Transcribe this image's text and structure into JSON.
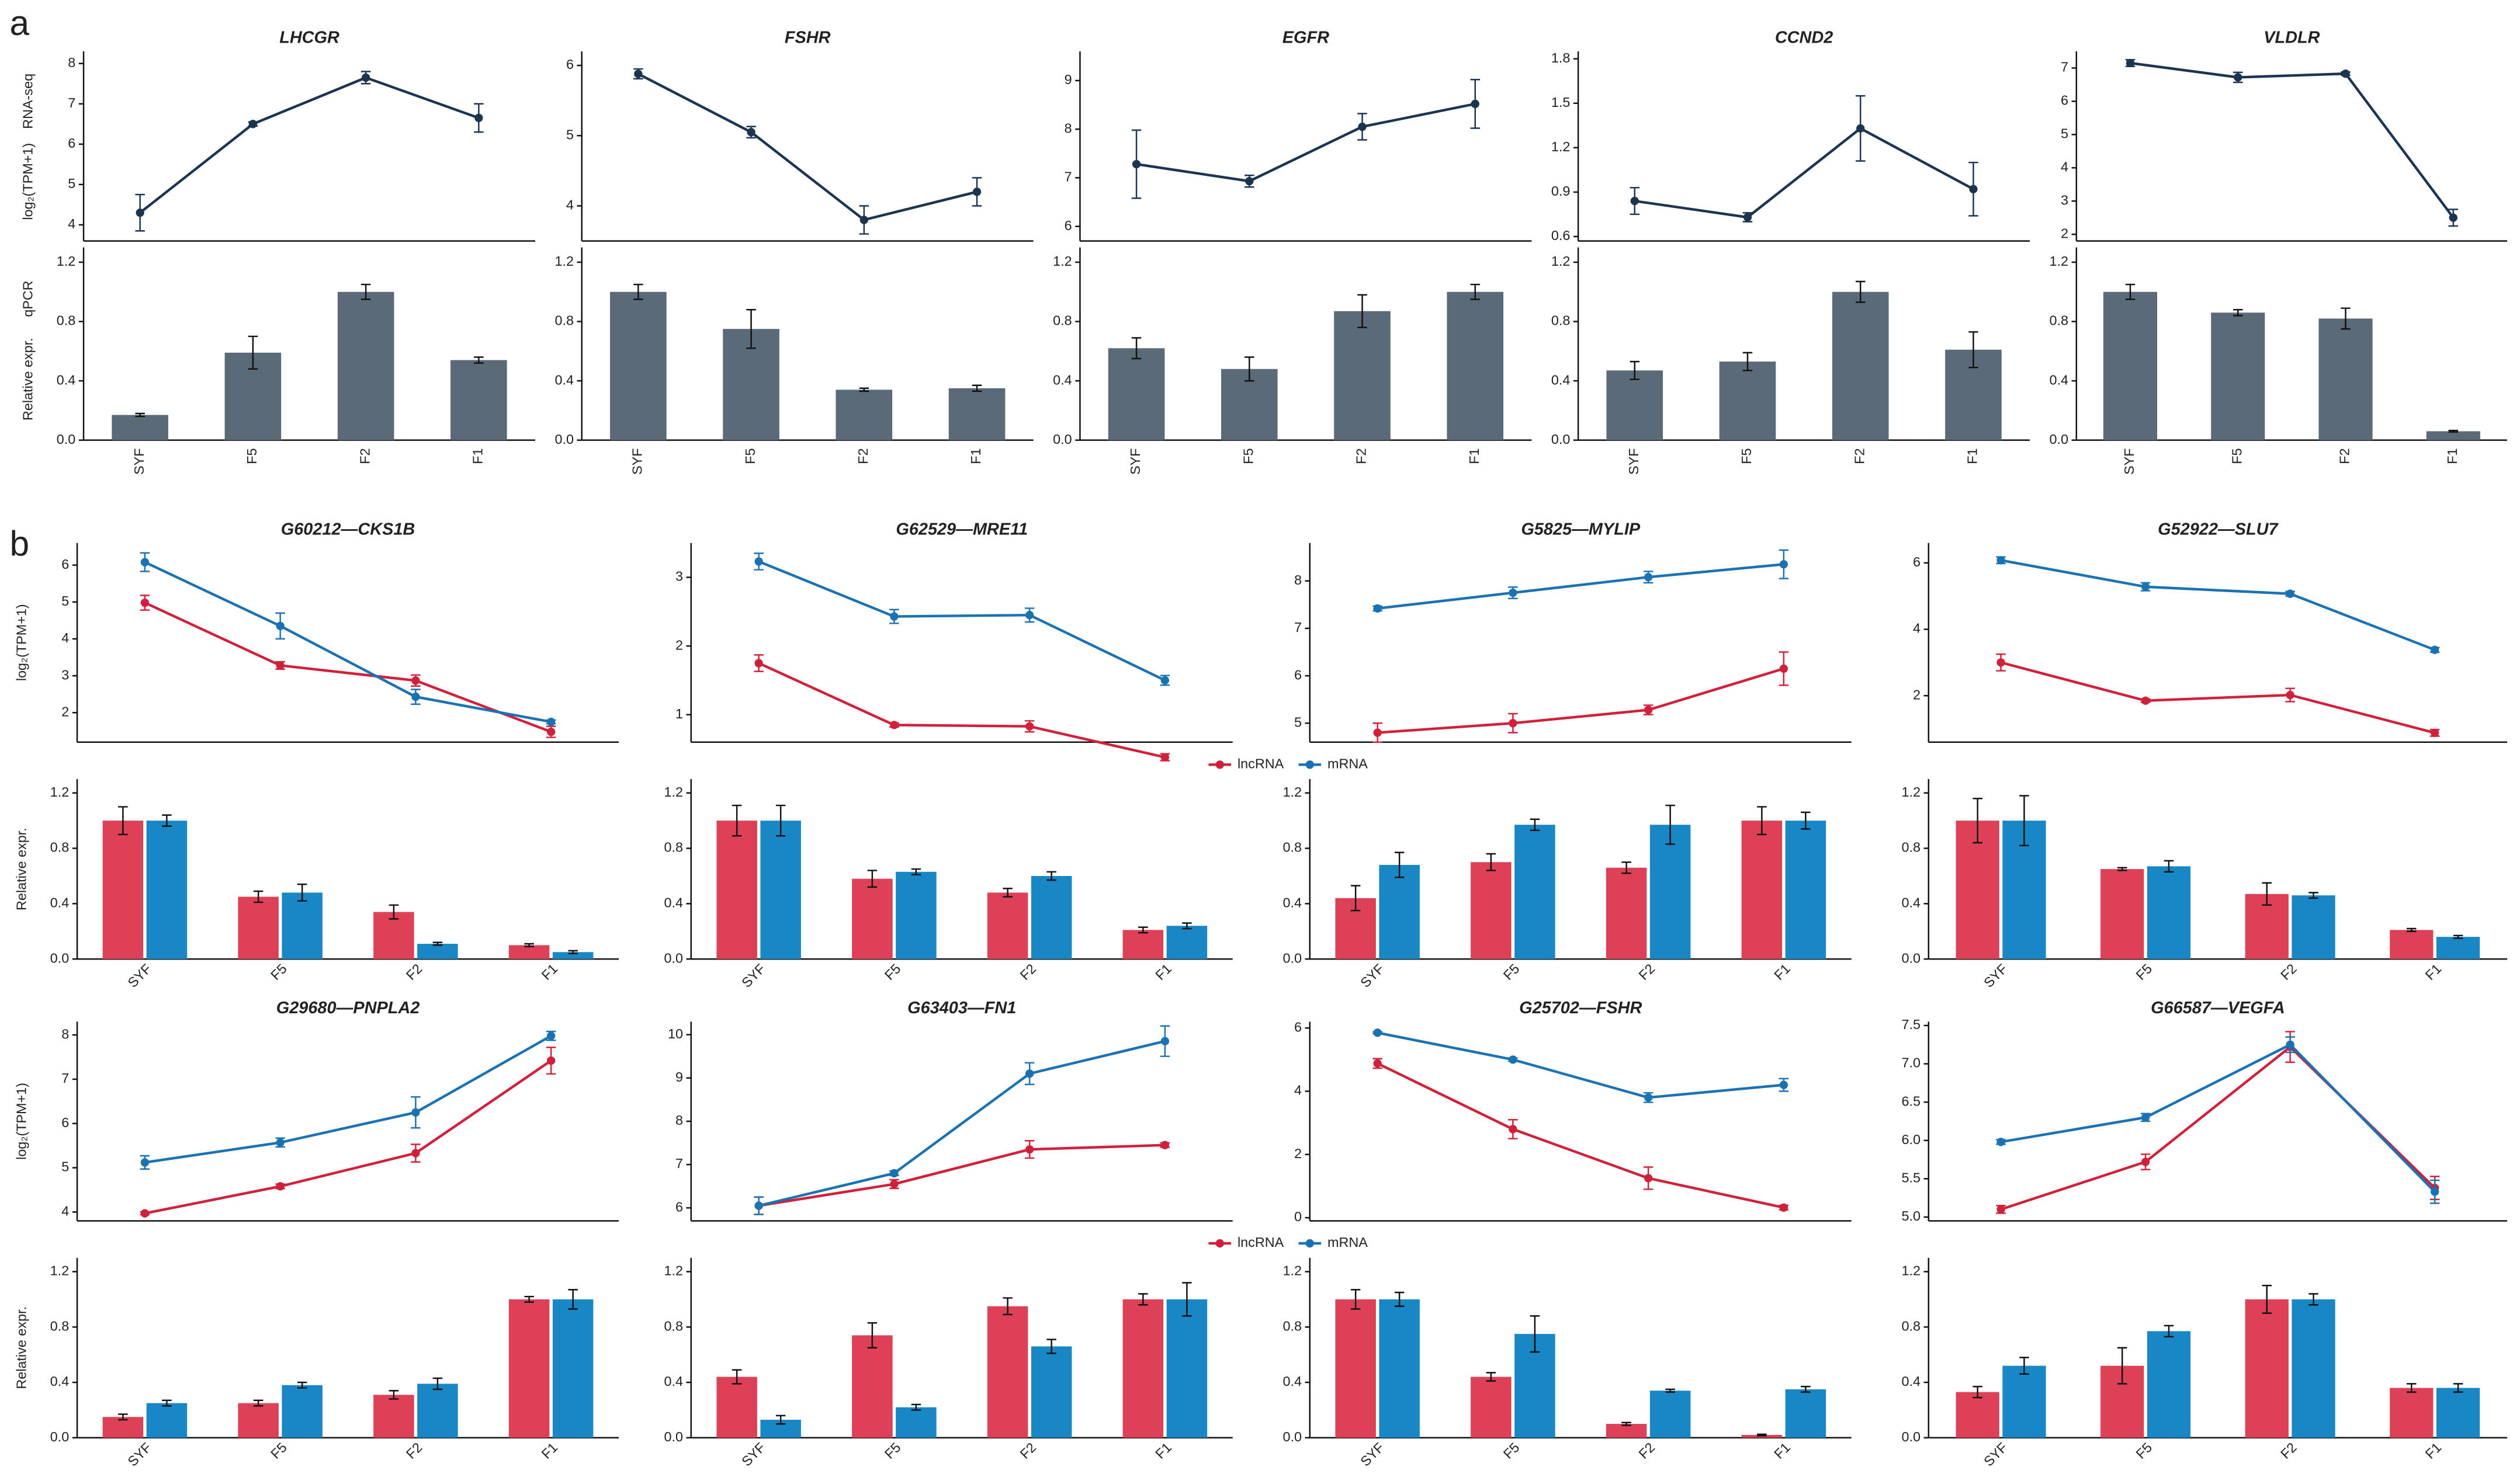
{
  "panel_labels": [
    "a",
    "b"
  ],
  "chart_data": [
    {
      "type": "line",
      "title": "LHCGR",
      "ylabel": "log₂(TPM+1)",
      "ylabel_2": "RNA-seq",
      "categories": [
        "SYF",
        "F5",
        "F2",
        "F1"
      ],
      "color": "#1b3550",
      "values": [
        4.3,
        6.5,
        7.65,
        6.65
      ],
      "errors": [
        0.45,
        0.05,
        0.15,
        0.35
      ],
      "ylim": [
        3.6,
        8.3
      ],
      "yticks": [
        4,
        5,
        6,
        7,
        8
      ]
    },
    {
      "type": "bar",
      "ylabel": "Relative expr.",
      "ylabel_2": "qPCR",
      "categories": [
        "SYF",
        "F5",
        "F2",
        "F1"
      ],
      "color": "#5a6a79",
      "values": [
        0.17,
        0.59,
        1.0,
        0.54
      ],
      "errors": [
        0.01,
        0.11,
        0.05,
        0.02
      ],
      "ylim": [
        0,
        1.3
      ],
      "yticks": [
        {
          "value": 0,
          "label": "0.0"
        },
        0.4,
        0.8,
        1.2
      ]
    },
    {
      "type": "line",
      "title": "FSHR",
      "categories": [
        "SYF",
        "F5",
        "F2",
        "F1"
      ],
      "color": "#1b3550",
      "values": [
        5.88,
        5.05,
        3.8,
        4.2
      ],
      "errors": [
        0.07,
        0.08,
        0.2,
        0.2
      ],
      "ylim": [
        3.5,
        6.2
      ],
      "yticks": [
        4,
        5,
        6
      ]
    },
    {
      "type": "bar",
      "categories": [
        "SYF",
        "F5",
        "F2",
        "F1"
      ],
      "color": "#5a6a79",
      "values": [
        1.0,
        0.75,
        0.34,
        0.35
      ],
      "errors": [
        0.05,
        0.13,
        0.01,
        0.02
      ],
      "ylim": [
        0,
        1.3
      ],
      "yticks": [
        {
          "value": 0,
          "label": "0.0"
        },
        0.4,
        0.8,
        1.2
      ]
    },
    {
      "type": "line",
      "title": "EGFR",
      "categories": [
        "SYF",
        "F5",
        "F2",
        "F1"
      ],
      "color": "#1b3550",
      "values": [
        7.28,
        6.93,
        8.05,
        8.52
      ],
      "errors": [
        0.7,
        0.12,
        0.27,
        0.5
      ],
      "ylim": [
        5.7,
        9.6
      ],
      "yticks": [
        6,
        7,
        8,
        9
      ]
    },
    {
      "type": "bar",
      "categories": [
        "SYF",
        "F5",
        "F2",
        "F1"
      ],
      "color": "#5a6a79",
      "values": [
        0.62,
        0.48,
        0.87,
        1.0
      ],
      "errors": [
        0.07,
        0.08,
        0.11,
        0.05
      ],
      "ylim": [
        0,
        1.3
      ],
      "yticks": [
        {
          "value": 0,
          "label": "0.0"
        },
        0.4,
        0.8,
        1.2
      ]
    },
    {
      "type": "line",
      "title": "CCND2",
      "categories": [
        "SYF",
        "F5",
        "F2",
        "F1"
      ],
      "color": "#1b3550",
      "values": [
        0.84,
        0.73,
        1.33,
        0.92
      ],
      "errors": [
        0.09,
        0.03,
        0.22,
        0.18
      ],
      "ylim": [
        0.57,
        1.85
      ],
      "yticks": [
        0.6,
        0.9,
        1.2,
        1.5,
        1.8
      ]
    },
    {
      "type": "bar",
      "categories": [
        "SYF",
        "F5",
        "F2",
        "F1"
      ],
      "color": "#5a6a79",
      "values": [
        0.47,
        0.53,
        1.0,
        0.61
      ],
      "errors": [
        0.06,
        0.06,
        0.07,
        0.12
      ],
      "ylim": [
        0,
        1.3
      ],
      "yticks": [
        {
          "value": 0,
          "label": "0.0"
        },
        0.4,
        0.8,
        1.2
      ]
    },
    {
      "type": "line",
      "title": "VLDLR",
      "categories": [
        "SYF",
        "F5",
        "F2",
        "F1"
      ],
      "color": "#1b3550",
      "values": [
        7.15,
        6.72,
        6.83,
        2.5
      ],
      "errors": [
        0.1,
        0.15,
        0.05,
        0.25
      ],
      "ylim": [
        1.8,
        7.5
      ],
      "yticks": [
        2,
        3,
        4,
        5,
        6,
        7
      ]
    },
    {
      "type": "bar",
      "categories": [
        "SYF",
        "F5",
        "F2",
        "F1"
      ],
      "color": "#5a6a79",
      "values": [
        1.0,
        0.86,
        0.82,
        0.06
      ],
      "errors": [
        0.05,
        0.02,
        0.07,
        0.005
      ],
      "ylim": [
        0,
        1.3
      ],
      "yticks": [
        {
          "value": 0,
          "label": "0.0"
        },
        0.4,
        0.8,
        1.2
      ]
    },
    {
      "type": "line",
      "title": "G60212—CKS1B",
      "ylabel": "log₂(TPM+1)",
      "categories": [
        "SYF",
        "F5",
        "F2",
        "F1"
      ],
      "series": [
        {
          "name": "lncRNA",
          "color": "#d0203a",
          "values": [
            4.98,
            3.28,
            2.87,
            1.48
          ],
          "errors": [
            0.2,
            0.1,
            0.15,
            0.15
          ]
        },
        {
          "name": "mRNA",
          "color": "#1a72b3",
          "values": [
            6.08,
            4.35,
            2.43,
            1.75
          ],
          "errors": [
            0.25,
            0.35,
            0.2,
            0.05
          ]
        }
      ],
      "ylim": [
        1.2,
        6.6
      ],
      "yticks": [
        2,
        3,
        4,
        5,
        6
      ]
    },
    {
      "type": "bar",
      "ylabel": "Relative expr.",
      "categories": [
        "SYF",
        "F5",
        "F2",
        "F1"
      ],
      "series": [
        {
          "color": "#dc4157",
          "values": [
            1.0,
            0.45,
            0.34,
            0.1
          ],
          "errors": [
            0.1,
            0.04,
            0.05,
            0.01
          ]
        },
        {
          "color": "#1a87c5",
          "values": [
            1.0,
            0.48,
            0.11,
            0.05
          ],
          "errors": [
            0.04,
            0.06,
            0.01,
            0.01
          ]
        }
      ],
      "ylim": [
        0,
        1.3
      ],
      "yticks": [
        {
          "value": 0,
          "label": "0.0"
        },
        0.4,
        0.8,
        1.2
      ]
    },
    {
      "type": "line",
      "title": "G62529—MRE11",
      "categories": [
        "SYF",
        "F5",
        "F2",
        "F1"
      ],
      "series": [
        {
          "name": "lncRNA",
          "color": "#d0203a",
          "values": [
            1.75,
            0.85,
            0.83,
            0.38
          ],
          "errors": [
            0.12,
            0.03,
            0.08,
            0.05
          ]
        },
        {
          "name": "mRNA",
          "color": "#1a72b3",
          "values": [
            3.23,
            2.43,
            2.45,
            1.5
          ],
          "errors": [
            0.12,
            0.1,
            0.1,
            0.07
          ]
        }
      ],
      "ylim": [
        0.6,
        3.5
      ],
      "yticks": [
        1,
        2,
        3
      ]
    },
    {
      "type": "bar",
      "categories": [
        "SYF",
        "F5",
        "F2",
        "F1"
      ],
      "series": [
        {
          "color": "#dc4157",
          "values": [
            1.0,
            0.58,
            0.48,
            0.21
          ],
          "errors": [
            0.11,
            0.06,
            0.03,
            0.02
          ]
        },
        {
          "color": "#1a87c5",
          "values": [
            1.0,
            0.63,
            0.6,
            0.24
          ],
          "errors": [
            0.11,
            0.02,
            0.03,
            0.02
          ]
        }
      ],
      "ylim": [
        0,
        1.3
      ],
      "yticks": [
        {
          "value": 0,
          "label": "0.0"
        },
        0.4,
        0.8,
        1.2
      ]
    },
    {
      "type": "line",
      "title": "G5825—MYLIP",
      "categories": [
        "SYF",
        "F5",
        "F2",
        "F1"
      ],
      "series": [
        {
          "name": "lncRNA",
          "color": "#d0203a",
          "values": [
            4.8,
            5.0,
            5.28,
            6.15
          ],
          "errors": [
            0.2,
            0.2,
            0.1,
            0.35
          ]
        },
        {
          "name": "mRNA",
          "color": "#1a72b3",
          "values": [
            7.42,
            7.75,
            8.08,
            8.35
          ],
          "errors": [
            0.05,
            0.12,
            0.12,
            0.3
          ]
        }
      ],
      "ylim": [
        4.6,
        8.8
      ],
      "yticks": [
        5,
        6,
        7,
        8
      ]
    },
    {
      "type": "bar",
      "categories": [
        "SYF",
        "F5",
        "F2",
        "F1"
      ],
      "series": [
        {
          "color": "#dc4157",
          "values": [
            0.44,
            0.7,
            0.66,
            1.0
          ],
          "errors": [
            0.09,
            0.06,
            0.04,
            0.1
          ]
        },
        {
          "color": "#1a87c5",
          "values": [
            0.68,
            0.97,
            0.97,
            1.0
          ],
          "errors": [
            0.09,
            0.04,
            0.14,
            0.06
          ]
        }
      ],
      "ylim": [
        0,
        1.3
      ],
      "yticks": [
        {
          "value": 0,
          "label": "0.0"
        },
        0.4,
        0.8,
        1.2
      ]
    },
    {
      "type": "line",
      "title": "G52922—SLU7",
      "categories": [
        "SYF",
        "F5",
        "F2",
        "F1"
      ],
      "series": [
        {
          "name": "lncRNA",
          "color": "#d0203a",
          "values": [
            3.0,
            1.85,
            2.02,
            0.88
          ],
          "errors": [
            0.25,
            0.05,
            0.2,
            0.1
          ]
        },
        {
          "name": "mRNA",
          "color": "#1a72b3",
          "values": [
            6.08,
            5.28,
            5.07,
            3.38
          ],
          "errors": [
            0.1,
            0.12,
            0.07,
            0.07
          ]
        }
      ],
      "ylim": [
        0.6,
        6.6
      ],
      "yticks": [
        2,
        4,
        6
      ]
    },
    {
      "type": "bar",
      "categories": [
        "SYF",
        "F5",
        "F2",
        "F1"
      ],
      "series": [
        {
          "color": "#dc4157",
          "values": [
            1.0,
            0.65,
            0.47,
            0.21
          ],
          "errors": [
            0.16,
            0.01,
            0.08,
            0.01
          ]
        },
        {
          "color": "#1a87c5",
          "values": [
            1.0,
            0.67,
            0.46,
            0.16
          ],
          "errors": [
            0.18,
            0.04,
            0.02,
            0.01
          ]
        }
      ],
      "ylim": [
        0,
        1.3
      ],
      "yticks": [
        {
          "value": 0,
          "label": "0.0"
        },
        0.4,
        0.8,
        1.2
      ]
    },
    {
      "type": "line",
      "title": "G29680—PNPLA2",
      "ylabel": "log₂(TPM+1)",
      "categories": [
        "SYF",
        "F5",
        "F2",
        "F1"
      ],
      "series": [
        {
          "name": "lncRNA",
          "color": "#d0203a",
          "values": [
            3.97,
            4.58,
            5.33,
            7.42
          ],
          "errors": [
            0.03,
            0.05,
            0.2,
            0.3
          ]
        },
        {
          "name": "mRNA",
          "color": "#1a72b3",
          "values": [
            5.12,
            5.57,
            6.25,
            7.98
          ],
          "errors": [
            0.15,
            0.1,
            0.35,
            0.1
          ]
        }
      ],
      "ylim": [
        3.8,
        8.3
      ],
      "yticks": [
        4,
        5,
        6,
        7,
        8
      ]
    },
    {
      "type": "bar",
      "ylabel": "Relative expr.",
      "categories": [
        "SYF",
        "F5",
        "F2",
        "F1"
      ],
      "series": [
        {
          "color": "#dc4157",
          "values": [
            0.15,
            0.25,
            0.31,
            1.0
          ],
          "errors": [
            0.02,
            0.02,
            0.03,
            0.02
          ]
        },
        {
          "color": "#1a87c5",
          "values": [
            0.25,
            0.38,
            0.39,
            1.0
          ],
          "errors": [
            0.02,
            0.02,
            0.04,
            0.07
          ]
        }
      ],
      "ylim": [
        0,
        1.3
      ],
      "yticks": [
        {
          "value": 0,
          "label": "0.0"
        },
        0.4,
        0.8,
        1.2
      ]
    },
    {
      "type": "line",
      "title": "G63403—FN1",
      "categories": [
        "SYF",
        "F5",
        "F2",
        "F1"
      ],
      "series": [
        {
          "name": "lncRNA",
          "color": "#d0203a",
          "values": [
            6.05,
            6.55,
            7.35,
            7.45
          ],
          "errors": [
            0.2,
            0.1,
            0.2,
            0.05
          ]
        },
        {
          "name": "mRNA",
          "color": "#1a72b3",
          "values": [
            6.05,
            6.8,
            9.1,
            9.85
          ],
          "errors": [
            0.2,
            0.05,
            0.25,
            0.35
          ]
        }
      ],
      "ylim": [
        5.7,
        10.3
      ],
      "yticks": [
        6,
        7,
        8,
        9,
        10
      ]
    },
    {
      "type": "bar",
      "categories": [
        "SYF",
        "F5",
        "F2",
        "F1"
      ],
      "series": [
        {
          "color": "#dc4157",
          "values": [
            0.44,
            0.74,
            0.95,
            1.0
          ],
          "errors": [
            0.05,
            0.09,
            0.06,
            0.04
          ]
        },
        {
          "color": "#1a87c5",
          "values": [
            0.13,
            0.22,
            0.66,
            1.0
          ],
          "errors": [
            0.03,
            0.02,
            0.05,
            0.12
          ]
        }
      ],
      "ylim": [
        0,
        1.3
      ],
      "yticks": [
        {
          "value": 0,
          "label": "0.0"
        },
        0.4,
        0.8,
        1.2
      ]
    },
    {
      "type": "line",
      "title": "G25702—FSHR",
      "categories": [
        "SYF",
        "F5",
        "F2",
        "F1"
      ],
      "series": [
        {
          "name": "lncRNA",
          "color": "#d0203a",
          "values": [
            4.88,
            2.8,
            1.25,
            0.32
          ],
          "errors": [
            0.15,
            0.3,
            0.35,
            0.07
          ]
        },
        {
          "name": "mRNA",
          "color": "#1a72b3",
          "values": [
            5.85,
            5.0,
            3.8,
            4.2
          ],
          "errors": [
            0.03,
            0.05,
            0.15,
            0.2
          ]
        }
      ],
      "ylim": [
        -0.1,
        6.2
      ],
      "yticks": [
        0,
        2,
        4,
        6
      ]
    },
    {
      "type": "bar",
      "categories": [
        "SYF",
        "F5",
        "F2",
        "F1"
      ],
      "series": [
        {
          "color": "#dc4157",
          "values": [
            1.0,
            0.44,
            0.1,
            0.02
          ],
          "errors": [
            0.07,
            0.03,
            0.01,
            0.005
          ]
        },
        {
          "color": "#1a87c5",
          "values": [
            1.0,
            0.75,
            0.34,
            0.35
          ],
          "errors": [
            0.05,
            0.13,
            0.01,
            0.02
          ]
        }
      ],
      "ylim": [
        0,
        1.3
      ],
      "yticks": [
        {
          "value": 0,
          "label": "0.0"
        },
        0.4,
        0.8,
        1.2
      ]
    },
    {
      "type": "line",
      "title": "G66587—VEGFA",
      "categories": [
        "SYF",
        "F5",
        "F2",
        "F1"
      ],
      "series": [
        {
          "name": "lncRNA",
          "color": "#d0203a",
          "values": [
            5.1,
            5.72,
            7.22,
            5.38
          ],
          "errors": [
            0.05,
            0.1,
            0.2,
            0.15
          ]
        },
        {
          "name": "mRNA",
          "color": "#1a72b3",
          "values": [
            5.98,
            6.3,
            7.25,
            5.33
          ],
          "errors": [
            0.03,
            0.05,
            0.1,
            0.15
          ]
        }
      ],
      "ylim": [
        4.95,
        7.55
      ],
      "yticks": [
        {
          "value": 5,
          "label": "5.0"
        },
        5.5,
        {
          "value": 6,
          "label": "6.0"
        },
        6.5,
        {
          "value": 7,
          "label": "7.0"
        },
        7.5
      ]
    },
    {
      "type": "bar",
      "categories": [
        "SYF",
        "F5",
        "F2",
        "F1"
      ],
      "series": [
        {
          "color": "#dc4157",
          "values": [
            0.33,
            0.52,
            1.0,
            0.36
          ],
          "errors": [
            0.04,
            0.13,
            0.1,
            0.03
          ]
        },
        {
          "color": "#1a87c5",
          "values": [
            0.52,
            0.77,
            1.0,
            0.36
          ],
          "errors": [
            0.06,
            0.04,
            0.04,
            0.03
          ]
        }
      ],
      "ylim": [
        0,
        1.3
      ],
      "yticks": [
        {
          "value": 0,
          "label": "0.0"
        },
        0.4,
        0.8,
        1.2
      ]
    }
  ]
}
